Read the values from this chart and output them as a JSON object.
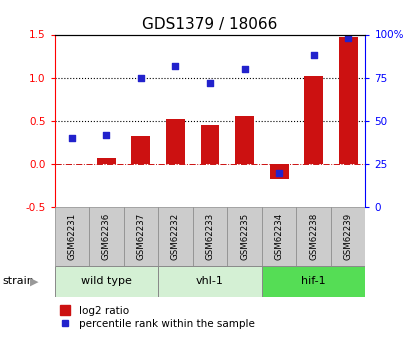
{
  "title": "GDS1379 / 18066",
  "samples": [
    "GSM62231",
    "GSM62236",
    "GSM62237",
    "GSM62232",
    "GSM62233",
    "GSM62235",
    "GSM62234",
    "GSM62238",
    "GSM62239"
  ],
  "log2_ratio": [
    0.0,
    0.07,
    0.32,
    0.52,
    0.45,
    0.55,
    -0.18,
    1.02,
    1.47
  ],
  "percentile_rank": [
    40,
    42,
    75,
    82,
    72,
    80,
    20,
    88,
    98
  ],
  "groups": [
    {
      "label": "wild type",
      "indices": [
        0,
        1,
        2
      ],
      "color": "#d4f0d4"
    },
    {
      "label": "vhl-1",
      "indices": [
        3,
        4,
        5
      ],
      "color": "#d4f0d4"
    },
    {
      "label": "hif-1",
      "indices": [
        6,
        7,
        8
      ],
      "color": "#55dd55"
    }
  ],
  "ylim_left": [
    -0.5,
    1.5
  ],
  "ylim_right": [
    0,
    100
  ],
  "bar_color": "#cc1111",
  "dot_color": "#2222cc",
  "right_ticks": [
    0,
    25,
    50,
    75,
    100
  ],
  "right_tick_labels": [
    "0",
    "25",
    "50",
    "75",
    "100%"
  ],
  "left_ticks": [
    -0.5,
    0.0,
    0.5,
    1.0,
    1.5
  ],
  "strain_label": "strain",
  "legend_bar_label": "log2 ratio",
  "legend_dot_label": "percentile rank within the sample",
  "title_fontsize": 11,
  "label_fontsize": 7.5,
  "sample_box_color": "#cccccc",
  "bar_width": 0.55
}
